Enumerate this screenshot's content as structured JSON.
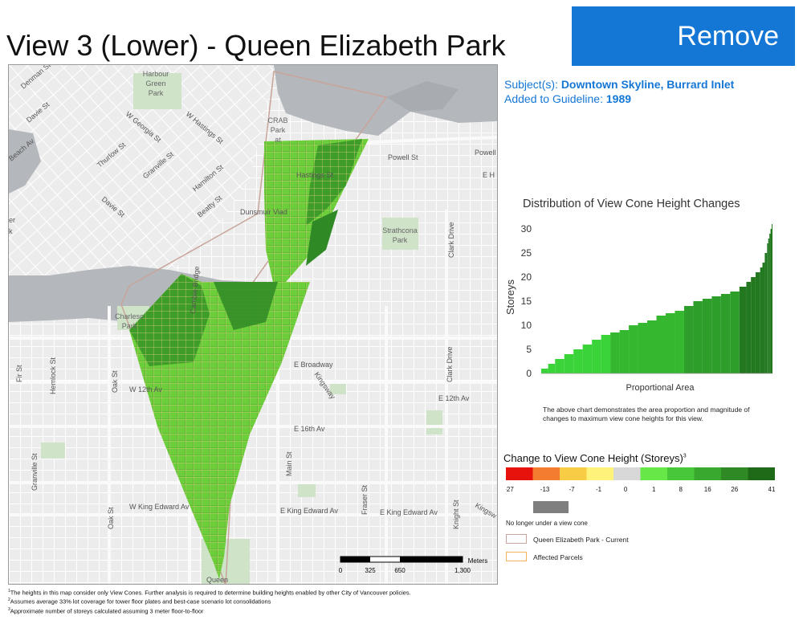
{
  "title": "View 3 (Lower) - Queen Elizabeth Park",
  "remove_label": "Remove",
  "subjects_label": "Subject(s):",
  "subjects_value": "Downtown Skyline, Burrard Inlet",
  "added_label": "Added to Guideline:",
  "added_value": "1989",
  "map": {
    "street_labels": [
      "Denman St",
      "Davie St",
      "Beach Av",
      "Thurlow St",
      "W Georgia St",
      "W Hastings St",
      "Granville St",
      "Davie St",
      "Hamilton St",
      "Beatty St",
      "Powell St",
      "Powell",
      "E H",
      "Hastings St",
      "Dunsmuir Viad",
      "Cambie Bridge",
      "Clark Drive",
      "Fir St",
      "Hemlock St",
      "Oak St",
      "W 12th Av",
      "E Broadway",
      "Kingsway",
      "Clark Drive",
      "E 12th Av",
      "E 16th Av",
      "Granville St",
      "Main St",
      "Fraser St",
      "W King Edward Av",
      "E King Edward Av",
      "E King Edward Av",
      "Oak St",
      "Knight St",
      "Kingsw",
      "Queen",
      "er",
      "k"
    ],
    "park_labels": [
      "Harbour",
      "Green",
      "Park",
      "CRAB",
      "Park",
      "at",
      "Strathcona",
      "Park",
      "Charleso",
      "Park"
    ],
    "scale": {
      "unit": "Meters",
      "ticks": [
        "0",
        "325",
        "650",
        "1,300"
      ]
    }
  },
  "chart": {
    "title": "Distribution of View Cone Height Changes",
    "note": "The above chart demonstrates the area proportion and magnitude of changes to maximum view cone heights for this view."
  },
  "chart_data": {
    "type": "area",
    "title": "Distribution of View Cone Height Changes",
    "xlabel": "Proportional Area",
    "ylabel": "Storeys",
    "ylim": [
      0,
      30
    ],
    "yticks": [
      0,
      5,
      10,
      15,
      20,
      25,
      30
    ],
    "x": [
      0,
      0.03,
      0.06,
      0.1,
      0.14,
      0.18,
      0.22,
      0.26,
      0.3,
      0.34,
      0.38,
      0.42,
      0.46,
      0.5,
      0.54,
      0.58,
      0.62,
      0.66,
      0.7,
      0.74,
      0.78,
      0.82,
      0.86,
      0.89,
      0.91,
      0.93,
      0.95,
      0.96,
      0.97,
      0.98,
      0.985,
      0.99,
      0.995,
      1.0
    ],
    "values": [
      1,
      2,
      3,
      4,
      5,
      6,
      7,
      8,
      8.5,
      9,
      10,
      10.5,
      11,
      12,
      12.5,
      13,
      14,
      15,
      15.5,
      16,
      16.5,
      17,
      18,
      19,
      20,
      21,
      22,
      23,
      25,
      27,
      28,
      29,
      30,
      31
    ],
    "grid": false,
    "colors": [
      "#3ad43a",
      "#35b82f",
      "#2e9e2b",
      "#22781f"
    ]
  },
  "legend": {
    "title": "Change to View Cone Height (Storeys)",
    "title_sup": "3",
    "colors": [
      "#e8120c",
      "#f47c30",
      "#f8cd45",
      "#fff27a",
      "#d8d8d8",
      "#68e848",
      "#48c838",
      "#38a82e",
      "#2f8a26",
      "#1f6a18"
    ],
    "tick_labels": [
      "-27",
      "-13",
      "-7",
      "-1",
      "0",
      "1",
      "8",
      "16",
      "26",
      "41"
    ],
    "nolonger_label": "No longer under a view cone",
    "current_label": "Queen Elizabeth Park - Current",
    "affected_label": "Affected Parcels",
    "current_color": "#c8a49a",
    "affected_color": "#f3b25a"
  },
  "footnotes": [
    {
      "sup": "1",
      "text": "The heights in this map consider only View Cones. Further analysis is required to determine building heights enabled by other City of Vancouver policies."
    },
    {
      "sup": "2",
      "text": "Assumes average 33% lot coverage for tower floor plates and best-case scenario lot consolidations"
    },
    {
      "sup": "3",
      "text": "Approximate number of storeys calculated assuming 3 meter floor-to-floor"
    }
  ]
}
